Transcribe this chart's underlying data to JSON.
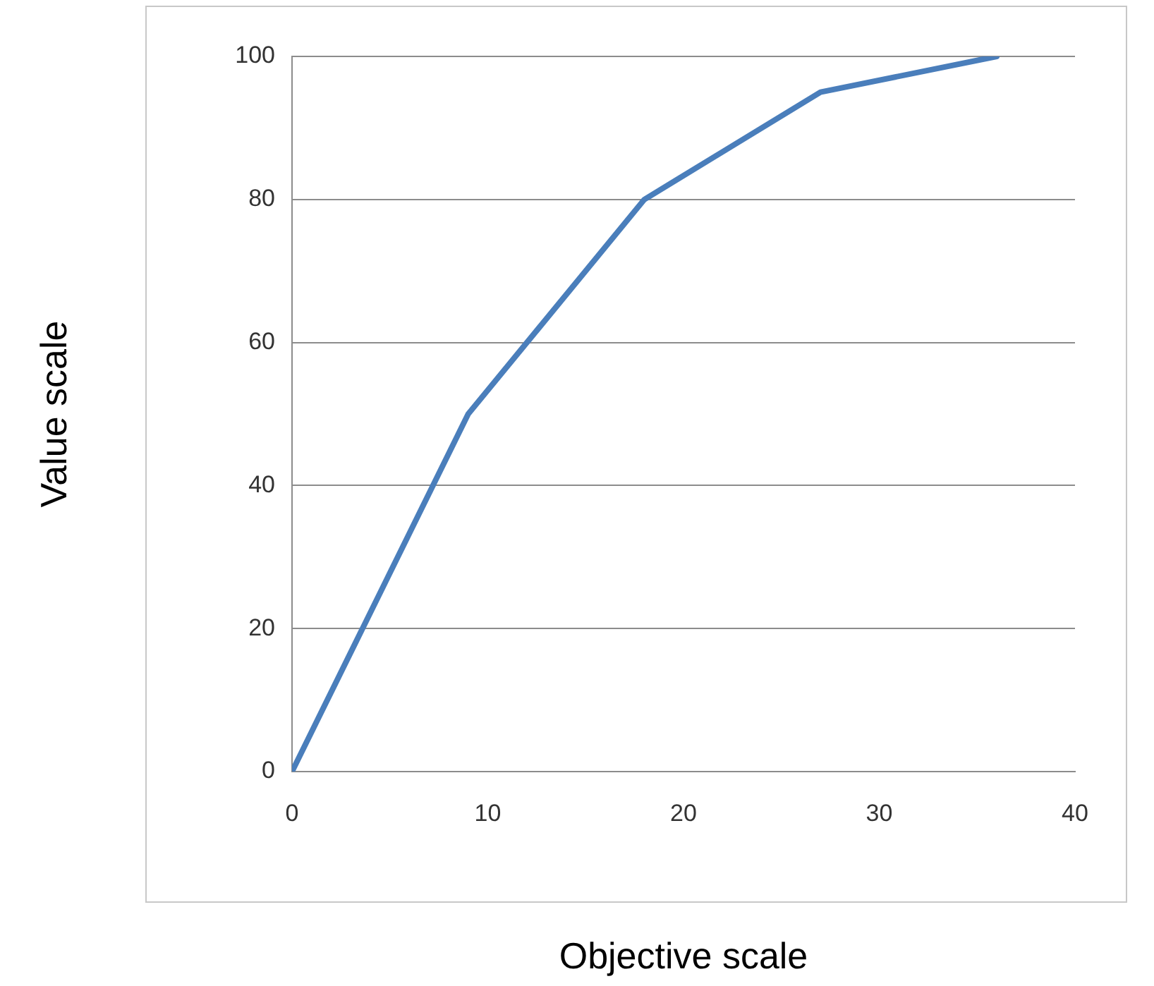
{
  "chart_data": {
    "type": "line",
    "xlabel": "Objective scale",
    "ylabel": "Value scale",
    "x": [
      0,
      9,
      18,
      27,
      36
    ],
    "series": [
      {
        "color": "#4a7ebb",
        "values": [
          0,
          50,
          80,
          95,
          100
        ]
      }
    ],
    "xlim": [
      0,
      40
    ],
    "xticks": [
      0,
      10,
      20,
      30,
      40
    ],
    "ylim": [
      0,
      100
    ],
    "yticks": [
      0,
      20,
      40,
      60,
      80,
      100
    ],
    "grid": "y",
    "legend": false,
    "marker": "none",
    "line_style": "solid"
  }
}
